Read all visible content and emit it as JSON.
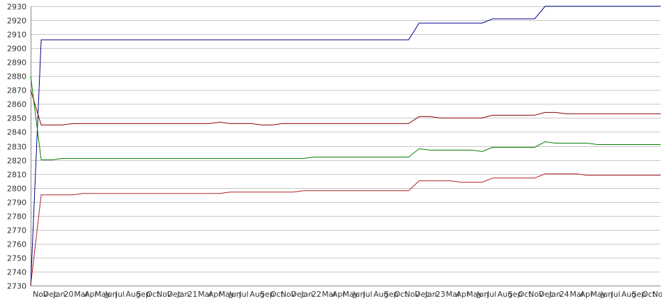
{
  "chart_data": {
    "type": "line",
    "title": "",
    "xlabel": "",
    "ylabel": "",
    "ylim": [
      2730,
      2930
    ],
    "y_ticks": [
      2730,
      2740,
      2750,
      2760,
      2770,
      2780,
      2790,
      2800,
      2810,
      2820,
      2830,
      2840,
      2850,
      2860,
      2870,
      2880,
      2890,
      2900,
      2910,
      2920,
      2930
    ],
    "x_tick_labels": [
      "Nov",
      "Dec",
      "Jan",
      "20",
      "Mar",
      "Apr",
      "May",
      "Jun",
      "Jul",
      "Aug",
      "Sep",
      "Oct",
      "Nov",
      "Dec",
      "Jan",
      "21",
      "Mar",
      "Apr",
      "May",
      "Jun",
      "Jul",
      "Aug",
      "Sep",
      "Oct",
      "Nov",
      "Dec",
      "Jan",
      "22",
      "Mar",
      "Apr",
      "May",
      "Jun",
      "Jul",
      "Aug",
      "Sep",
      "Oct",
      "Nov",
      "Dec",
      "Jan",
      "23",
      "Mar",
      "Apr",
      "May",
      "Jun",
      "Jul",
      "Aug",
      "Sep",
      "Oct",
      "Nov",
      "Dec",
      "Jan",
      "24",
      "Mar",
      "Apr",
      "May",
      "Jun",
      "Jul",
      "Aug",
      "Sep",
      "Oct",
      "Nov"
    ],
    "grid": true,
    "legend": "none",
    "x_count": 61,
    "series": [
      {
        "color": "#00008b",
        "values": [
          2730,
          2906,
          2906,
          2906,
          2906,
          2906,
          2906,
          2906,
          2906,
          2906,
          2906,
          2906,
          2906,
          2906,
          2906,
          2906,
          2906,
          2906,
          2906,
          2906,
          2906,
          2906,
          2906,
          2906,
          2906,
          2906,
          2906,
          2906,
          2906,
          2906,
          2906,
          2906,
          2906,
          2906,
          2906,
          2906,
          2906,
          2918,
          2918,
          2918,
          2918,
          2918,
          2918,
          2918,
          2921,
          2921,
          2921,
          2921,
          2921,
          2930,
          2930,
          2930,
          2930,
          2930,
          2930,
          2930,
          2930,
          2930,
          2930,
          2930,
          2930
        ]
      },
      {
        "color": "#8b0000",
        "values": [
          2870,
          2845,
          2845,
          2845,
          2846,
          2846,
          2846,
          2846,
          2846,
          2846,
          2846,
          2846,
          2846,
          2846,
          2846,
          2846,
          2846,
          2846,
          2847,
          2846,
          2846,
          2846,
          2845,
          2845,
          2846,
          2846,
          2846,
          2846,
          2846,
          2846,
          2846,
          2846,
          2846,
          2846,
          2846,
          2846,
          2846,
          2851,
          2851,
          2850,
          2850,
          2850,
          2850,
          2850,
          2852,
          2852,
          2852,
          2852,
          2852,
          2854,
          2854,
          2853,
          2853,
          2853,
          2853,
          2853,
          2853,
          2853,
          2853,
          2853,
          2853
        ]
      },
      {
        "color": "#008000",
        "values": [
          2880,
          2820,
          2820,
          2821,
          2821,
          2821,
          2821,
          2821,
          2821,
          2821,
          2821,
          2821,
          2821,
          2821,
          2821,
          2821,
          2821,
          2821,
          2821,
          2821,
          2821,
          2821,
          2821,
          2821,
          2821,
          2821,
          2821,
          2822,
          2822,
          2822,
          2822,
          2822,
          2822,
          2822,
          2822,
          2822,
          2822,
          2828,
          2827,
          2827,
          2827,
          2827,
          2827,
          2826,
          2829,
          2829,
          2829,
          2829,
          2829,
          2833,
          2832,
          2832,
          2832,
          2832,
          2831,
          2831,
          2831,
          2831,
          2831,
          2831,
          2831
        ]
      },
      {
        "color": "#b22222",
        "values": [
          2730,
          2795,
          2795,
          2795,
          2795,
          2796,
          2796,
          2796,
          2796,
          2796,
          2796,
          2796,
          2796,
          2796,
          2796,
          2796,
          2796,
          2796,
          2796,
          2797,
          2797,
          2797,
          2797,
          2797,
          2797,
          2797,
          2798,
          2798,
          2798,
          2798,
          2798,
          2798,
          2798,
          2798,
          2798,
          2798,
          2798,
          2805,
          2805,
          2805,
          2805,
          2804,
          2804,
          2804,
          2807,
          2807,
          2807,
          2807,
          2807,
          2810,
          2810,
          2810,
          2810,
          2809,
          2809,
          2809,
          2809,
          2809,
          2809,
          2809,
          2809
        ]
      }
    ]
  }
}
